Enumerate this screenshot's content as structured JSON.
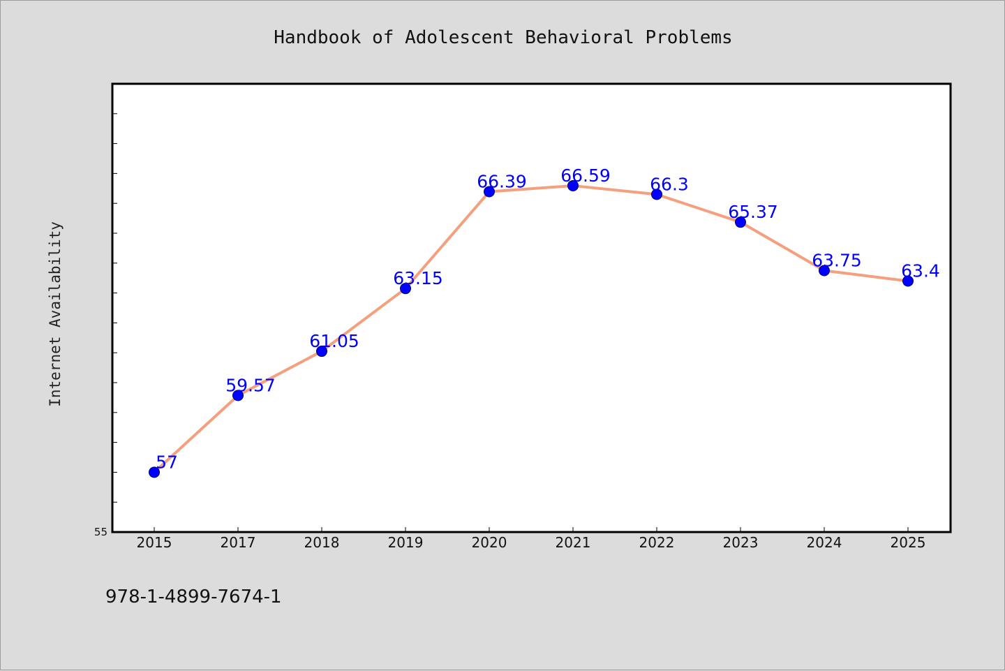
{
  "chart_data": {
    "type": "line",
    "title": "Handbook of Adolescent Behavioral Problems",
    "xlabel": "",
    "ylabel": "Internet Availability",
    "categories": [
      "2015",
      "2017",
      "2018",
      "2019",
      "2020",
      "2021",
      "2022",
      "2023",
      "2024",
      "2025"
    ],
    "series": [
      {
        "values": [
          57,
          59.57,
          61.05,
          63.15,
          66.39,
          66.59,
          66.3,
          65.37,
          63.75,
          63.4
        ],
        "labels": [
          "57",
          "59.57",
          "61.05",
          "63.15",
          "66.39",
          "66.59",
          "66.3",
          "65.37",
          "63.75",
          "63.4"
        ],
        "line_color": "#f4a07e",
        "marker_color": "#0000ff"
      }
    ],
    "ylim": [
      55,
      70
    ],
    "y_tick_labels": [
      "55"
    ],
    "grid": false,
    "legend": "none"
  },
  "footer": {
    "isbn": "978-1-4899-7674-1"
  },
  "colors": {
    "background": "#dcdcdc",
    "plot_background": "#ffffff",
    "label_color": "#0000ff"
  }
}
